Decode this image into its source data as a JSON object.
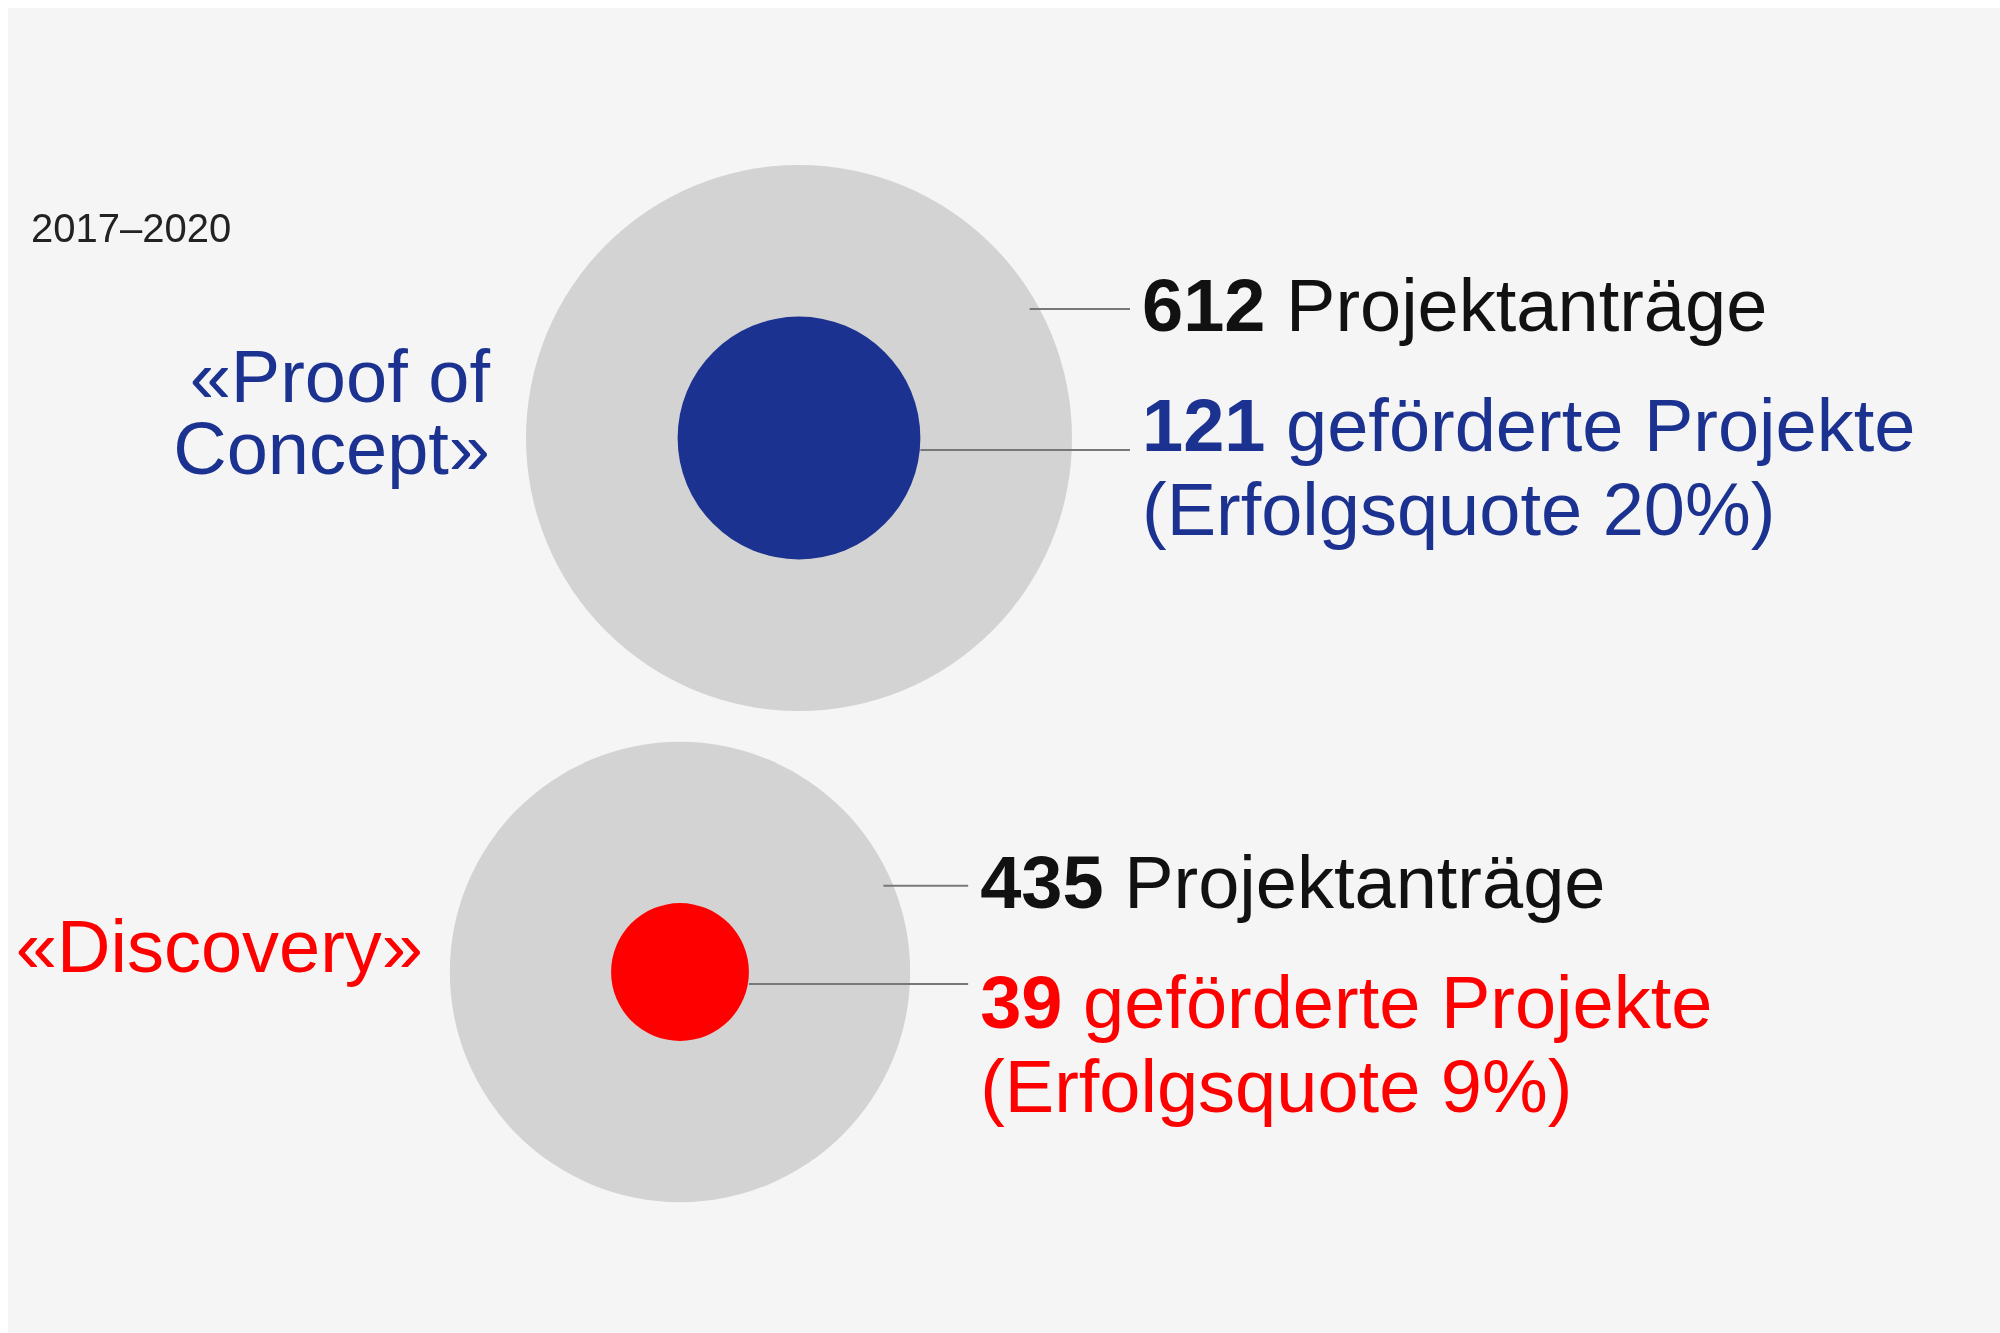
{
  "chart_data": {
    "type": "other",
    "title": "2017–2020",
    "categories": [
      "«Proof of Concept»",
      "«Discovery»"
    ],
    "series": [
      {
        "color": "#d3d3d3",
        "values": [
          612,
          435
        ],
        "value_labels": [
          "612 Projektanträge",
          "435 Projektanträge"
        ]
      },
      {
        "colors": [
          "#1b3290",
          "#ff0000"
        ],
        "values": [
          121,
          39
        ],
        "value_labels": [
          "121 geförderte Projekte (Erfolgsquote 20%)",
          "39 geförderte Projekte (Erfolgsquote 9%)"
        ]
      }
    ]
  }
}
